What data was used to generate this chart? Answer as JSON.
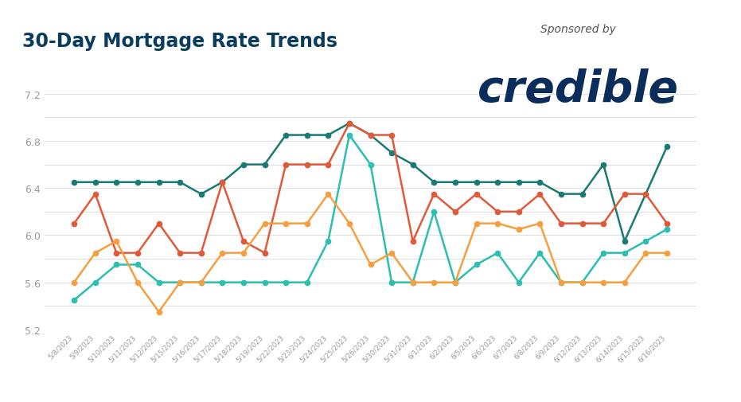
{
  "title": "30-Day Mortgage Rate Trends",
  "sponsored_by": "Sponsored by",
  "sponsor": "credible",
  "dates": [
    "5/8/2023",
    "5/9/2023",
    "5/10/2023",
    "5/11/2023",
    "5/12/2023",
    "5/15/2023",
    "5/16/2023",
    "5/17/2023",
    "5/18/2023",
    "5/19/2023",
    "5/22/2023",
    "5/23/2023",
    "5/24/2023",
    "5/25/2023",
    "5/26/2023",
    "5/30/2023",
    "5/31/2023",
    "6/1/2023",
    "6/2/2023",
    "6/5/2023",
    "6/6/2023",
    "6/7/2023",
    "6/8/2023",
    "6/9/2023",
    "6/12/2023",
    "6/13/2023",
    "6/14/2023",
    "6/15/2023",
    "6/16/2023"
  ],
  "series_30yr": [
    6.45,
    6.45,
    6.45,
    6.45,
    6.45,
    6.45,
    6.35,
    6.45,
    6.6,
    6.6,
    6.85,
    6.85,
    6.85,
    6.95,
    6.85,
    6.7,
    6.6,
    6.45,
    6.45,
    6.45,
    6.45,
    6.45,
    6.45,
    6.35,
    6.35,
    6.6,
    5.95,
    6.35,
    6.75
  ],
  "series_20yr": [
    6.1,
    6.35,
    5.85,
    5.85,
    6.1,
    5.85,
    5.85,
    6.45,
    5.95,
    5.85,
    6.6,
    6.6,
    6.6,
    6.95,
    6.85,
    6.85,
    5.95,
    6.35,
    6.2,
    6.35,
    6.2,
    6.2,
    6.35,
    6.1,
    6.1,
    6.1,
    6.35,
    6.35,
    6.1
  ],
  "series_15yr": [
    5.45,
    5.6,
    5.75,
    5.75,
    5.6,
    5.6,
    5.6,
    5.6,
    5.6,
    5.6,
    5.6,
    5.6,
    5.95,
    6.85,
    6.6,
    5.6,
    5.6,
    6.2,
    5.6,
    5.75,
    5.85,
    5.6,
    5.85,
    5.6,
    5.6,
    5.85,
    5.85,
    5.95,
    6.05
  ],
  "series_10yr": [
    5.6,
    5.85,
    5.95,
    5.6,
    5.35,
    5.6,
    5.6,
    5.85,
    5.85,
    6.1,
    6.1,
    6.1,
    6.35,
    6.1,
    5.75,
    5.85,
    5.6,
    5.6,
    5.6,
    6.1,
    6.1,
    6.05,
    6.1,
    5.6,
    5.6,
    5.6,
    5.6,
    5.85,
    5.85
  ],
  "color_30yr": "#1a7a74",
  "color_20yr": "#e05a3a",
  "color_15yr": "#2abfb0",
  "color_10yr": "#f4a040",
  "ylim_min": 5.2,
  "ylim_max": 7.25,
  "yticks": [
    5.2,
    5.4,
    5.6,
    5.8,
    6.0,
    6.2,
    6.4,
    6.6,
    6.8,
    7.0,
    7.2
  ],
  "ytick_labels": [
    "5.2",
    "",
    "5.6",
    "",
    "6.0",
    "",
    "6.4",
    "",
    "6.8",
    "",
    "7.2"
  ],
  "bg_color": "#ffffff",
  "title_color": "#0a3d5c",
  "axis_color": "#999999",
  "grid_color": "#e0e0e0",
  "credible_color": "#0a2d5c",
  "sponsor_text_color": "#555555"
}
